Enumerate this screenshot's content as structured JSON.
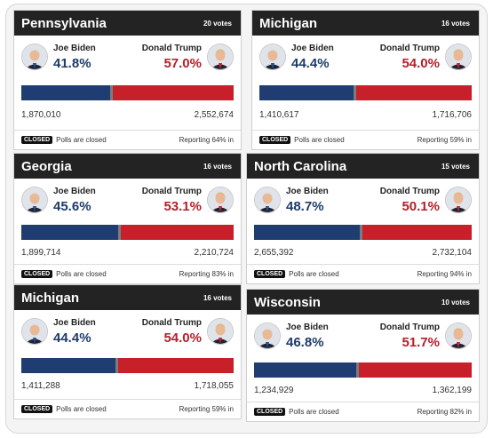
{
  "colors": {
    "biden": "#1f3d70",
    "trump": "#c8202a",
    "header": "#232323"
  },
  "icons": {
    "biden_avatar": "person-icon",
    "trump_avatar": "person-icon"
  },
  "cards": [
    {
      "state": "Pennsylvania",
      "votes": "20 votes",
      "biden_name": "Joe Biden",
      "biden_pct": "41.8%",
      "trump_name": "Donald Trump",
      "trump_pct": "57.0%",
      "biden_share": 0.418,
      "biden_count": "1,870,010",
      "trump_count": "2,552,674",
      "badge": "CLOSED",
      "status": "Polls are closed",
      "reporting": "Reporting 64% in"
    },
    {
      "state": "Michigan",
      "votes": "16 votes",
      "biden_name": "Joe Biden",
      "biden_pct": "44.4%",
      "trump_name": "Donald Trump",
      "trump_pct": "54.0%",
      "biden_share": 0.444,
      "biden_count": "1,410,617",
      "trump_count": "1,716,706",
      "badge": "CLOSED",
      "status": "Polls are closed",
      "reporting": "Reporting 59% in"
    },
    {
      "state": "Georgia",
      "votes": "16 votes",
      "biden_name": "Joe Biden",
      "biden_pct": "45.6%",
      "trump_name": "Donald Trump",
      "trump_pct": "53.1%",
      "biden_share": 0.456,
      "biden_count": "1,899,714",
      "trump_count": "2,210,724",
      "badge": "CLOSED",
      "status": "Polls are closed",
      "reporting": "Reporting 83% in"
    },
    {
      "state": "North Carolina",
      "votes": "15 votes",
      "biden_name": "Joe Biden",
      "biden_pct": "48.7%",
      "trump_name": "Donald Trump",
      "trump_pct": "50.1%",
      "biden_share": 0.487,
      "biden_count": "2,655,392",
      "trump_count": "2,732,104",
      "badge": "CLOSED",
      "status": "Polls are closed",
      "reporting": "Reporting 94% in"
    },
    {
      "state": "Michigan",
      "votes": "16 votes",
      "biden_name": "Joe Biden",
      "biden_pct": "44.4%",
      "trump_name": "Donald Trump",
      "trump_pct": "54.0%",
      "biden_share": 0.444,
      "biden_count": "1,411,288",
      "trump_count": "1,718,055",
      "badge": "CLOSED",
      "status": "Polls are closed",
      "reporting": "Reporting 59% in"
    },
    {
      "state": "Wisconsin",
      "votes": "10 votes",
      "biden_name": "Joe Biden",
      "biden_pct": "46.8%",
      "trump_name": "Donald Trump",
      "trump_pct": "51.7%",
      "biden_share": 0.468,
      "biden_count": "1,234,929",
      "trump_count": "1,362,199",
      "badge": "CLOSED",
      "status": "Polls are closed",
      "reporting": "Reporting 82% in"
    }
  ]
}
